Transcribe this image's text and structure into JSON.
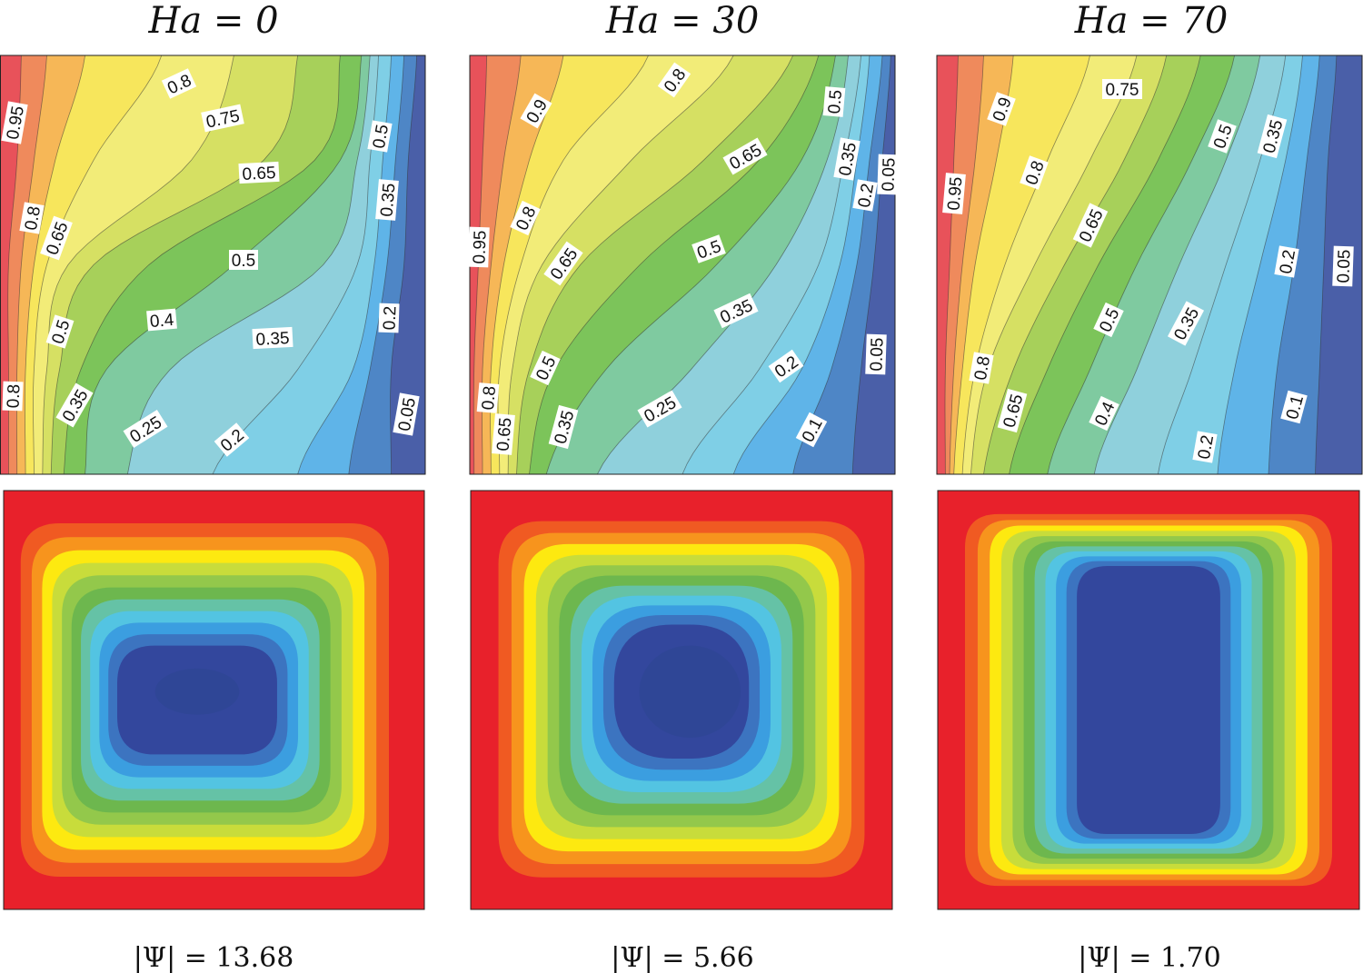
{
  "chart_data": [
    {
      "type": "contour",
      "name": "isotherms-and-streamlines",
      "case": {
        "parameter": "Ha",
        "value": "0",
        "title": "Ha = 0"
      },
      "isotherm_labels": [
        "0.95",
        "0.8",
        "0.75",
        "0.65",
        "0.5",
        "0.35",
        "0.8",
        "0.65",
        "0.5",
        "0.4",
        "0.5",
        "0.35",
        "0.2",
        "0.8",
        "0.35",
        "0.25",
        "0.2",
        "0.05"
      ],
      "stream_function": {
        "label": "|Ψ| = 13.68",
        "symbol": "Ψ",
        "max_abs": "13.68"
      }
    },
    {
      "type": "contour",
      "name": "isotherms-and-streamlines",
      "case": {
        "parameter": "Ha",
        "value": "30",
        "title": "Ha = 30"
      },
      "isotherm_labels": [
        "0.9",
        "0.8",
        "0.5",
        "0.65",
        "0.35",
        "0.05",
        "0.2",
        "0.95",
        "0.8",
        "0.65",
        "0.5",
        "0.35",
        "0.5",
        "0.2",
        "0.05",
        "0.8",
        "0.65",
        "0.35",
        "0.25",
        "0.1"
      ],
      "stream_function": {
        "label": "|Ψ| = 5.66",
        "symbol": "Ψ",
        "max_abs": "5.66"
      }
    },
    {
      "type": "contour",
      "name": "isotherms-and-streamlines",
      "case": {
        "parameter": "Ha",
        "value": "70",
        "title": "Ha = 70"
      },
      "isotherm_labels": [
        "0.75",
        "0.9",
        "0.5",
        "0.35",
        "0.95",
        "0.8",
        "0.65",
        "0.2",
        "0.05",
        "0.5",
        "0.35",
        "0.8",
        "0.65",
        "0.4",
        "0.1",
        "0.2"
      ],
      "stream_function": {
        "label": "|Ψ| = 1.70",
        "symbol": "Ψ",
        "max_abs": "1.70"
      }
    }
  ],
  "colors": {
    "isotherm_levels": [
      "#e8525a",
      "#ef8a5c",
      "#f6b757",
      "#f7e65c",
      "#f2ec78",
      "#d6e063",
      "#a7d05a",
      "#7cc45a",
      "#7fcaa0",
      "#8fd0dc",
      "#7fcfe6",
      "#5fb4e8",
      "#4e86c6",
      "#4a5fa8"
    ],
    "streamline_levels": [
      "#e8212b",
      "#f05a22",
      "#f7941d",
      "#fde910",
      "#c8dc3b",
      "#93c84b",
      "#6db74e",
      "#65c2a6",
      "#53c4e2",
      "#3b9ee0",
      "#3c74c0",
      "#33479d"
    ]
  }
}
